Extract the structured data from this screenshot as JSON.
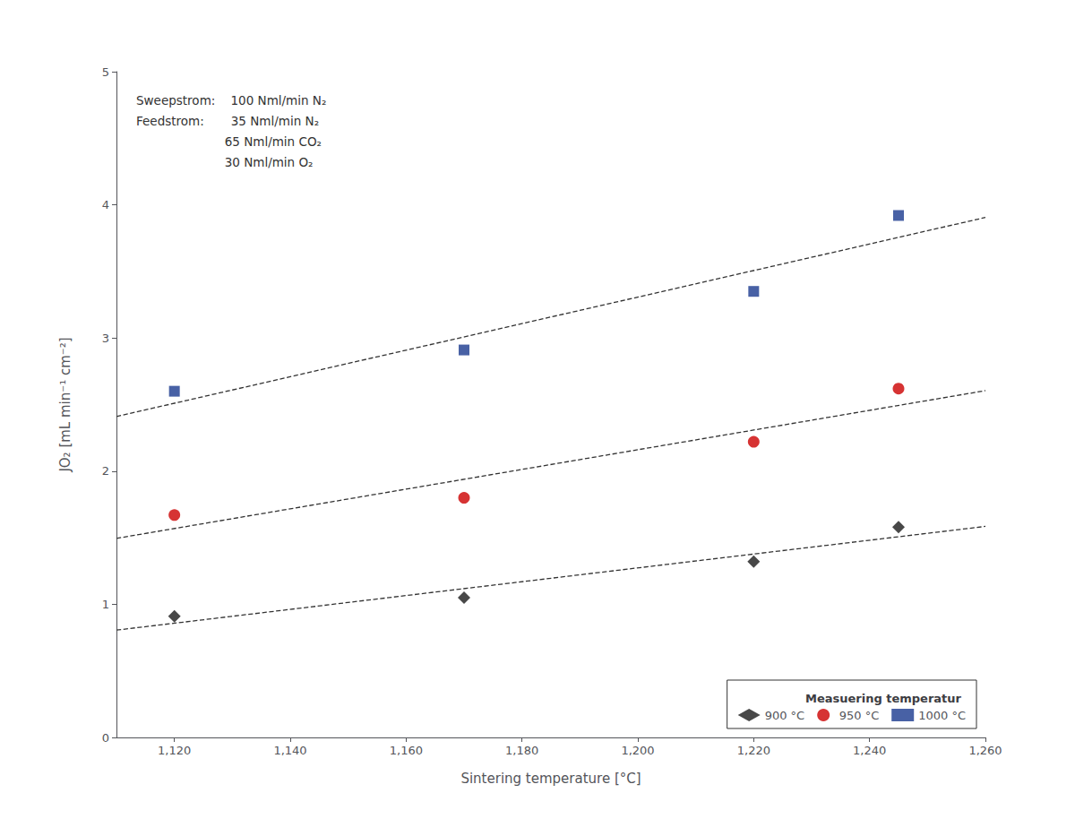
{
  "chart_data": {
    "type": "scatter",
    "xlabel": "Sintering temperature [°C]",
    "ylabel": "JO₂ [mL min⁻¹ cm⁻²]",
    "xlim": [
      1110,
      1260
    ],
    "ylim": [
      0,
      5
    ],
    "xticks": [
      1120,
      1140,
      1160,
      1180,
      1200,
      1220,
      1240,
      1260
    ],
    "yticks": [
      0,
      1,
      2,
      3,
      4,
      5
    ],
    "grid": false,
    "legend": "lower right",
    "legend_title": "Measuering temperatur",
    "annotations": [
      "Sweepstrom:    100 Nml/min N₂",
      "Feedstrom:       35 Nml/min N₂",
      "                       65 Nml/min CO₂",
      "                       30 Nml/min O₂"
    ],
    "series": [
      {
        "name": "900 °C",
        "color": "#1a1a1a",
        "marker": "diamond",
        "x": [
          1120,
          1170,
          1220,
          1245
        ],
        "values": [
          0.91,
          1.05,
          1.32,
          1.58
        ],
        "trendline": {
          "x": [
            1110,
            1260
          ],
          "values": [
            0.806,
            1.585
          ],
          "color": "#333333",
          "line_style": "dashed"
        }
      },
      {
        "name": "950 °C",
        "color": "#cc0000",
        "marker": "circle",
        "x": [
          1120,
          1170,
          1220,
          1245
        ],
        "values": [
          1.67,
          1.8,
          2.22,
          2.62
        ],
        "trendline": {
          "x": [
            1110,
            1260
          ],
          "values": [
            1.495,
            2.6045
          ],
          "color": "#333333",
          "line_style": "dashed"
        }
      },
      {
        "name": "1000 °C",
        "color": "#1a3a8f",
        "marker": "square",
        "x": [
          1120,
          1170,
          1220,
          1245
        ],
        "values": [
          2.6,
          2.91,
          3.35,
          3.92
        ],
        "trendline": {
          "x": [
            1110,
            1260
          ],
          "values": [
            2.4102,
            3.9051
          ],
          "color": "#333333",
          "line_style": "dashed"
        }
      }
    ]
  }
}
